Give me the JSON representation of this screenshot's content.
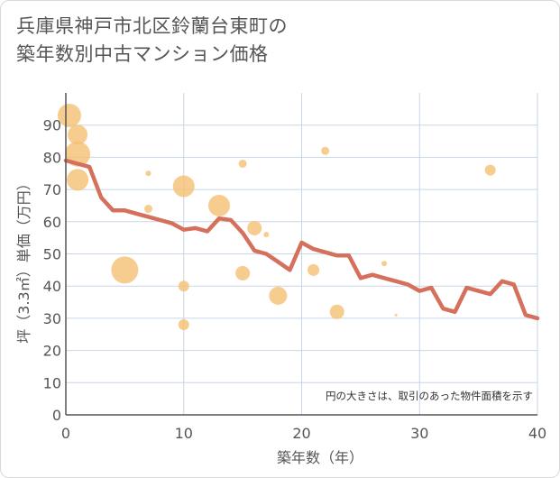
{
  "title_line1": "兵庫県神戸市北区鈴蘭台東町の",
  "title_line2": "築年数別中古マンション価格",
  "chart_data": {
    "type": "scatter",
    "title": "兵庫県神戸市北区鈴蘭台東町の築年数別中古マンション価格",
    "xlabel": "築年数（年）",
    "ylabel": "坪（3.3㎡）単価（万円）",
    "xlim": [
      0,
      40
    ],
    "ylim": [
      0,
      100
    ],
    "xticks": [
      0,
      10,
      20,
      30,
      40
    ],
    "yticks": [
      0,
      10,
      20,
      30,
      40,
      50,
      60,
      70,
      80,
      90
    ],
    "grid": true,
    "note": "円の大きさは、取引のあった物件面積を示す",
    "colors": {
      "bubble": "#f5c173",
      "line": "#d4705c",
      "grid": "#c8d6e6",
      "axis": "#555555"
    },
    "bubbles": [
      {
        "x": 0.3,
        "y": 93,
        "size": 13
      },
      {
        "x": 1,
        "y": 87,
        "size": 11
      },
      {
        "x": 1,
        "y": 81,
        "size": 14
      },
      {
        "x": 1,
        "y": 73,
        "size": 12
      },
      {
        "x": 5,
        "y": 45,
        "size": 15
      },
      {
        "x": 7,
        "y": 75,
        "size": 3
      },
      {
        "x": 7,
        "y": 64,
        "size": 4.5
      },
      {
        "x": 10,
        "y": 71,
        "size": 12
      },
      {
        "x": 10,
        "y": 40,
        "size": 6
      },
      {
        "x": 10,
        "y": 28,
        "size": 6
      },
      {
        "x": 13,
        "y": 65,
        "size": 12
      },
      {
        "x": 15,
        "y": 78,
        "size": 4.5
      },
      {
        "x": 15,
        "y": 44,
        "size": 8
      },
      {
        "x": 16,
        "y": 58,
        "size": 8
      },
      {
        "x": 17,
        "y": 56,
        "size": 3
      },
      {
        "x": 18,
        "y": 37,
        "size": 10
      },
      {
        "x": 21,
        "y": 45,
        "size": 6.5
      },
      {
        "x": 22,
        "y": 82,
        "size": 4.5
      },
      {
        "x": 23,
        "y": 32,
        "size": 8
      },
      {
        "x": 27,
        "y": 47,
        "size": 3
      },
      {
        "x": 28,
        "y": 31,
        "size": 1.5
      },
      {
        "x": 36,
        "y": 76,
        "size": 6
      }
    ],
    "line": {
      "x": [
        0,
        1,
        2,
        3,
        4,
        5,
        6,
        7,
        8,
        9,
        10,
        11,
        12,
        13,
        14,
        15,
        16,
        17,
        18,
        19,
        20,
        21,
        22,
        23,
        24,
        25,
        26,
        27,
        28,
        29,
        30,
        31,
        32,
        33,
        34,
        35,
        36,
        37,
        38,
        39,
        40
      ],
      "y": [
        79,
        78,
        77,
        67.5,
        63.5,
        63.5,
        62.5,
        61.5,
        60.5,
        59.5,
        57.5,
        58,
        57,
        61,
        60.5,
        56.5,
        51,
        50,
        47.5,
        45,
        53.5,
        51.5,
        50.5,
        49.5,
        49.5,
        42.5,
        43.5,
        42.5,
        41.5,
        40.5,
        38.5,
        39.5,
        33,
        32,
        39.5,
        38.5,
        37.5,
        41.5,
        40.5,
        31,
        30
      ]
    }
  }
}
